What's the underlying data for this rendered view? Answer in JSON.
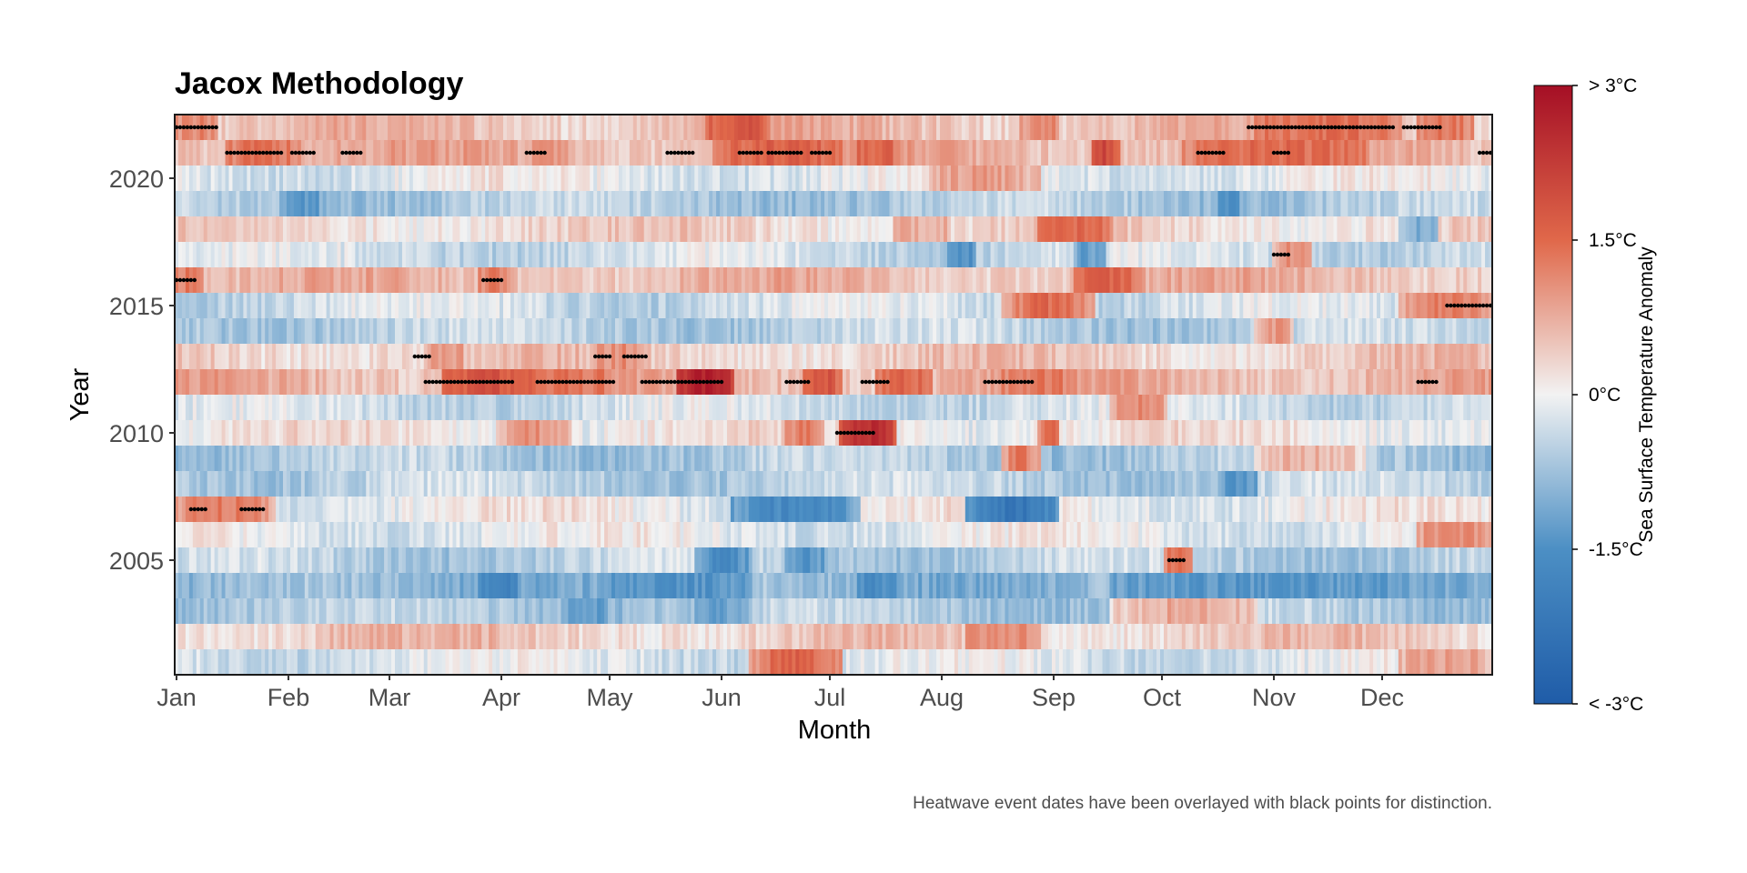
{
  "chart_data": {
    "type": "heatmap",
    "title": "Jacox Methodology",
    "xlabel": "Month",
    "ylabel": "Year",
    "caption": "Heatwave event dates have been overlayed with black points for distinction.",
    "x_tick_labels": [
      "Jan",
      "Feb",
      "Mar",
      "Apr",
      "May",
      "Jun",
      "Jul",
      "Aug",
      "Sep",
      "Oct",
      "Nov",
      "Dec"
    ],
    "y_ticks": [
      2005,
      2010,
      2015,
      2020
    ],
    "y_range": [
      2001,
      2022
    ],
    "x_range_days": [
      1,
      365
    ],
    "colorbar": {
      "title": "Sea Surface Temperature Anomaly",
      "range": [
        -3,
        3
      ],
      "tick_values": [
        3,
        1.5,
        0,
        -1.5,
        -3
      ],
      "tick_labels": [
        "> 3°C",
        "1.5°C",
        "0°C",
        "-1.5°C",
        "< -3°C"
      ],
      "colors": {
        "low": "#1f5ca8",
        "mid_low": "#4c8fc4",
        "mid": "#f2f2f2",
        "mid_high": "#e0684a",
        "high": "#a50f25"
      }
    },
    "marker_color": "#000000",
    "year_profiles": [
      {
        "year": 2022,
        "base": 0.55,
        "segments": [
          [
            1,
            12,
            1.2
          ],
          [
            148,
            165,
            1.8
          ],
          [
            235,
            245,
            1.2
          ],
          [
            300,
            340,
            1.5
          ],
          [
            345,
            360,
            1.4
          ]
        ]
      },
      {
        "year": 2021,
        "base": 0.7,
        "segments": [
          [
            15,
            35,
            1.4
          ],
          [
            100,
            110,
            1.0
          ],
          [
            150,
            185,
            1.6
          ],
          [
            190,
            200,
            1.6
          ],
          [
            255,
            262,
            2.0
          ],
          [
            280,
            330,
            1.5
          ]
        ]
      },
      {
        "year": 2020,
        "base": -0.1,
        "segments": [
          [
            210,
            240,
            0.9
          ]
        ]
      },
      {
        "year": 2019,
        "base": -0.6,
        "segments": [
          [
            30,
            40,
            -1.4
          ],
          [
            290,
            295,
            -1.5
          ]
        ]
      },
      {
        "year": 2018,
        "base": 0.3,
        "segments": [
          [
            200,
            215,
            0.8
          ],
          [
            240,
            260,
            1.5
          ],
          [
            340,
            350,
            -1.1
          ]
        ]
      },
      {
        "year": 2017,
        "base": -0.3,
        "segments": [
          [
            215,
            222,
            -1.6
          ],
          [
            250,
            258,
            -1.3
          ],
          [
            305,
            315,
            1.1
          ]
        ]
      },
      {
        "year": 2016,
        "base": 0.6,
        "segments": [
          [
            1,
            8,
            1.3
          ],
          [
            85,
            95,
            1.2
          ],
          [
            250,
            268,
            1.6
          ]
        ]
      },
      {
        "year": 2015,
        "base": -0.3,
        "segments": [
          [
            230,
            255,
            1.5
          ],
          [
            340,
            365,
            1.3
          ]
        ]
      },
      {
        "year": 2014,
        "base": -0.5,
        "segments": [
          [
            300,
            310,
            1.0
          ]
        ]
      },
      {
        "year": 2013,
        "base": 0.4,
        "segments": [
          [
            70,
            80,
            1.0
          ],
          [
            118,
            130,
            1.1
          ]
        ]
      },
      {
        "year": 2012,
        "base": 0.7,
        "segments": [
          [
            75,
            100,
            1.8
          ],
          [
            100,
            120,
            1.4
          ],
          [
            140,
            155,
            2.7
          ],
          [
            175,
            185,
            1.8
          ],
          [
            195,
            210,
            1.6
          ],
          [
            230,
            250,
            1.3
          ]
        ]
      },
      {
        "year": 2011,
        "base": -0.3,
        "segments": [
          [
            260,
            275,
            1.1
          ]
        ]
      },
      {
        "year": 2010,
        "base": 0.1,
        "segments": [
          [
            90,
            110,
            1.0
          ],
          [
            170,
            180,
            1.3
          ],
          [
            185,
            200,
            2.5
          ],
          [
            240,
            245,
            1.5
          ]
        ]
      },
      {
        "year": 2009,
        "base": -0.6,
        "segments": [
          [
            230,
            240,
            1.3
          ],
          [
            300,
            330,
            0.7
          ]
        ]
      },
      {
        "year": 2008,
        "base": -0.5,
        "segments": [
          [
            290,
            300,
            -1.4
          ]
        ]
      },
      {
        "year": 2007,
        "base": 0.0,
        "segments": [
          [
            1,
            28,
            1.3
          ],
          [
            155,
            190,
            -1.7
          ],
          [
            220,
            245,
            -2.2
          ]
        ]
      },
      {
        "year": 2006,
        "base": -0.1,
        "segments": [
          [
            345,
            365,
            1.2
          ]
        ]
      },
      {
        "year": 2005,
        "base": -0.5,
        "segments": [
          [
            145,
            160,
            -1.6
          ],
          [
            170,
            180,
            -1.4
          ],
          [
            275,
            282,
            1.5
          ]
        ]
      },
      {
        "year": 2004,
        "base": -0.9,
        "segments": [
          [
            85,
            95,
            -1.8
          ],
          [
            120,
            160,
            -1.5
          ],
          [
            190,
            200,
            -1.6
          ],
          [
            260,
            340,
            -1.4
          ]
        ]
      },
      {
        "year": 2003,
        "base": -0.6,
        "segments": [
          [
            110,
            120,
            -1.3
          ],
          [
            145,
            160,
            -1.2
          ],
          [
            260,
            300,
            0.8
          ]
        ]
      },
      {
        "year": 2002,
        "base": 0.4,
        "segments": [
          [
            40,
            90,
            0.7
          ],
          [
            220,
            240,
            1.2
          ]
        ]
      },
      {
        "year": 2001,
        "base": -0.2,
        "segments": [
          [
            160,
            185,
            1.6
          ],
          [
            340,
            365,
            0.9
          ]
        ]
      }
    ],
    "heatwave_events": [
      {
        "year": 2022,
        "start_day": 1,
        "end_day": 12
      },
      {
        "year": 2022,
        "start_day": 298,
        "end_day": 338
      },
      {
        "year": 2022,
        "start_day": 341,
        "end_day": 351
      },
      {
        "year": 2021,
        "start_day": 15,
        "end_day": 30
      },
      {
        "year": 2021,
        "start_day": 33,
        "end_day": 39
      },
      {
        "year": 2021,
        "start_day": 47,
        "end_day": 52
      },
      {
        "year": 2021,
        "start_day": 98,
        "end_day": 103
      },
      {
        "year": 2021,
        "start_day": 137,
        "end_day": 144
      },
      {
        "year": 2021,
        "start_day": 157,
        "end_day": 163
      },
      {
        "year": 2021,
        "start_day": 165,
        "end_day": 174
      },
      {
        "year": 2021,
        "start_day": 177,
        "end_day": 182
      },
      {
        "year": 2021,
        "start_day": 284,
        "end_day": 291
      },
      {
        "year": 2021,
        "start_day": 305,
        "end_day": 309
      },
      {
        "year": 2021,
        "start_day": 362,
        "end_day": 365
      },
      {
        "year": 2017,
        "start_day": 305,
        "end_day": 309
      },
      {
        "year": 2016,
        "start_day": 1,
        "end_day": 6
      },
      {
        "year": 2016,
        "start_day": 86,
        "end_day": 91
      },
      {
        "year": 2015,
        "start_day": 353,
        "end_day": 365
      },
      {
        "year": 2013,
        "start_day": 67,
        "end_day": 71
      },
      {
        "year": 2013,
        "start_day": 117,
        "end_day": 121
      },
      {
        "year": 2013,
        "start_day": 125,
        "end_day": 131
      },
      {
        "year": 2012,
        "start_day": 70,
        "end_day": 94
      },
      {
        "year": 2012,
        "start_day": 101,
        "end_day": 122
      },
      {
        "year": 2012,
        "start_day": 130,
        "end_day": 152
      },
      {
        "year": 2012,
        "start_day": 170,
        "end_day": 176
      },
      {
        "year": 2012,
        "start_day": 191,
        "end_day": 198
      },
      {
        "year": 2012,
        "start_day": 225,
        "end_day": 238
      },
      {
        "year": 2012,
        "start_day": 345,
        "end_day": 350
      },
      {
        "year": 2010,
        "start_day": 184,
        "end_day": 194
      },
      {
        "year": 2007,
        "start_day": 5,
        "end_day": 9
      },
      {
        "year": 2007,
        "start_day": 19,
        "end_day": 25
      },
      {
        "year": 2005,
        "start_day": 276,
        "end_day": 280
      }
    ]
  }
}
